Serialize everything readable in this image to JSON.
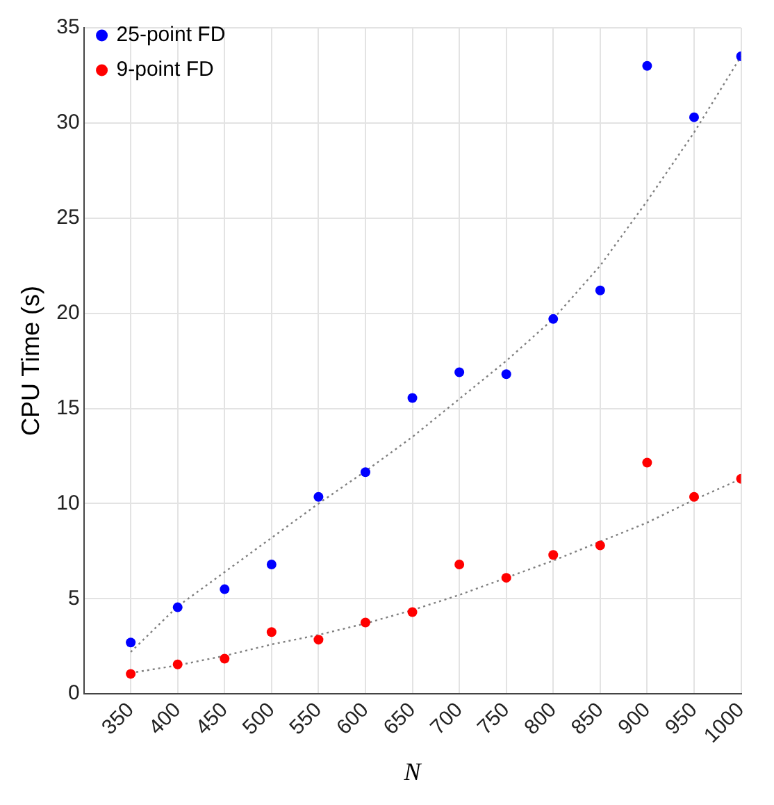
{
  "chart_data": {
    "type": "scatter",
    "xlabel": "N",
    "ylabel": "CPU Time (s)",
    "xlim": [
      300,
      1000
    ],
    "xticks": [
      350,
      400,
      450,
      500,
      550,
      600,
      650,
      700,
      750,
      800,
      850,
      900,
      950,
      1000
    ],
    "ylim": [
      0,
      35
    ],
    "yticks": [
      0,
      5,
      10,
      15,
      20,
      25,
      30,
      35
    ],
    "grid": true,
    "legend": "top left",
    "marker": "circle",
    "x": [
      350,
      400,
      450,
      500,
      550,
      600,
      650,
      700,
      750,
      800,
      850,
      900,
      950,
      1000
    ],
    "series": [
      {
        "name": "25-point FD",
        "color": "#0000ff",
        "values": [
          2.7,
          4.55,
          5.5,
          6.8,
          10.35,
          11.65,
          15.55,
          16.9,
          16.8,
          19.7,
          21.2,
          33.0,
          30.3,
          33.5
        ]
      },
      {
        "name": "9-point FD",
        "color": "#ff0000",
        "values": [
          1.05,
          1.55,
          1.85,
          3.25,
          2.85,
          3.75,
          4.3,
          6.8,
          6.1,
          7.3,
          7.8,
          12.15,
          10.35,
          11.3
        ]
      },
      {
        "type": "line",
        "color": "#808080",
        "line_style": "dotted",
        "marker": "none",
        "values": [
          2.2,
          4.6,
          6.4,
          8.2,
          10.0,
          11.7,
          13.5,
          15.5,
          17.5,
          19.7,
          22.5,
          25.9,
          29.5,
          33.5
        ]
      },
      {
        "type": "line",
        "color": "#808080",
        "line_style": "dotted",
        "marker": "none",
        "values": [
          1.1,
          1.5,
          2.0,
          2.6,
          3.1,
          3.7,
          4.4,
          5.2,
          6.1,
          7.0,
          8.0,
          9.0,
          10.2,
          11.3
        ]
      }
    ]
  }
}
